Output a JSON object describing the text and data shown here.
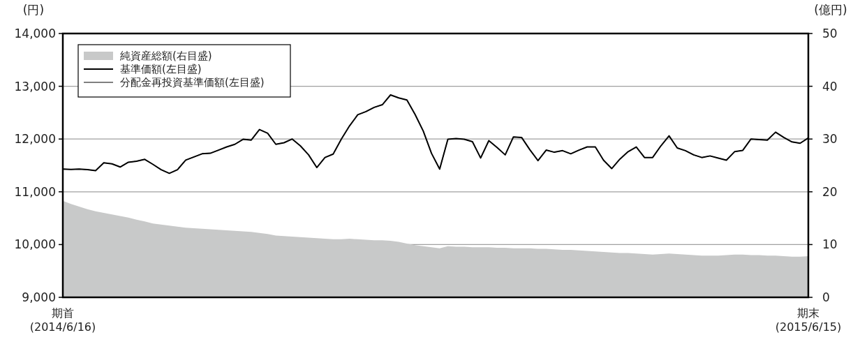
{
  "chart_data": {
    "type": "line",
    "ylabel": "(円)",
    "y2label": "(億円)",
    "categories": [
      "期首\n(2014/6/16)",
      null,
      null,
      null,
      null,
      null,
      null,
      null,
      null,
      null,
      null,
      null,
      null,
      null,
      null,
      null,
      null,
      null,
      null,
      null,
      null,
      null,
      null,
      null,
      null,
      null,
      null,
      null,
      null,
      null,
      null,
      null,
      null,
      null,
      null,
      null,
      null,
      null,
      null,
      null,
      null,
      null,
      null,
      null,
      null,
      null,
      null,
      null,
      null,
      null,
      null,
      null,
      null,
      null,
      null,
      null,
      null,
      null,
      null,
      null,
      null,
      null,
      null,
      null,
      null,
      null,
      null,
      null,
      null,
      null,
      null,
      null,
      null,
      null,
      null,
      null,
      null,
      null,
      null,
      null,
      null,
      null,
      null,
      null,
      null,
      null,
      null,
      null,
      null,
      null,
      null,
      "期末\n(2015/6/15)"
    ],
    "ylim": [
      9000,
      14000
    ],
    "yticks": [
      {
        "value": 9000,
        "label": "9,000"
      },
      {
        "value": 10000,
        "label": "10,000"
      },
      {
        "value": 11000,
        "label": "11,000"
      },
      {
        "value": 12000,
        "label": "12,000"
      },
      {
        "value": 13000,
        "label": "13,000"
      },
      {
        "value": 14000,
        "label": "14,000"
      }
    ],
    "y2lim": [
      0,
      50
    ],
    "y2ticks": [
      0,
      10,
      20,
      30,
      40,
      50
    ],
    "grid": "y",
    "legend": "top left",
    "series": [
      {
        "name": "純資産総額(右目盛)",
        "type": "area",
        "axis": "y2",
        "color": "#c8c9c9",
        "values": [
          18.3,
          17.7,
          17.2,
          16.7,
          16.3,
          16.0,
          15.7,
          15.4,
          15.1,
          14.7,
          14.4,
          14.0,
          13.8,
          13.6,
          13.4,
          13.2,
          13.1,
          13.0,
          12.9,
          12.8,
          12.7,
          12.6,
          12.5,
          12.4,
          12.2,
          12.0,
          11.7,
          11.6,
          11.5,
          11.4,
          11.3,
          11.2,
          11.1,
          11.0,
          11.0,
          11.1,
          11.0,
          10.9,
          10.8,
          10.8,
          10.7,
          10.5,
          10.2,
          9.9,
          9.7,
          9.5,
          9.3,
          9.7,
          9.6,
          9.6,
          9.5,
          9.5,
          9.5,
          9.4,
          9.4,
          9.3,
          9.3,
          9.3,
          9.2,
          9.2,
          9.1,
          9.0,
          9.0,
          8.9,
          8.8,
          8.7,
          8.6,
          8.5,
          8.4,
          8.4,
          8.3,
          8.2,
          8.1,
          8.2,
          8.3,
          8.2,
          8.1,
          8.0,
          7.9,
          7.9,
          7.9,
          8.0,
          8.1,
          8.1,
          8.0,
          8.0,
          7.9,
          7.9,
          7.8,
          7.7,
          7.7,
          7.8
        ]
      },
      {
        "name": "基準価額(左目盛)",
        "color": "#000000",
        "values": [
          11430,
          11425,
          11430,
          11420,
          11400,
          11550,
          11530,
          11470,
          11560,
          11580,
          11615,
          11520,
          11420,
          11350,
          11420,
          11600,
          11660,
          11720,
          11730,
          11790,
          11850,
          11900,
          11995,
          11980,
          12180,
          12110,
          11900,
          11930,
          12000,
          11870,
          11700,
          11460,
          11650,
          11715,
          12000,
          12250,
          12460,
          12520,
          12600,
          12650,
          12836,
          12780,
          12740,
          12465,
          12150,
          11730,
          11430,
          11995,
          12008,
          11995,
          11950,
          11640,
          11970,
          11840,
          11700,
          12040,
          12030,
          11800,
          11590,
          11790,
          11750,
          11780,
          11720,
          11790,
          11850,
          11850,
          11600,
          11440,
          11620,
          11760,
          11850,
          11650,
          11650,
          11870,
          12060,
          11830,
          11780,
          11700,
          11650,
          11680,
          11640,
          11600,
          11760,
          11785,
          12000,
          11990,
          11980,
          12130,
          12030,
          11945,
          11920,
          12020
        ]
      },
      {
        "name": "分配金再投資基準価額(左目盛)",
        "color": "#000000",
        "values": [
          11430,
          11425,
          11430,
          11420,
          11400,
          11550,
          11530,
          11470,
          11560,
          11580,
          11615,
          11520,
          11420,
          11350,
          11420,
          11600,
          11660,
          11720,
          11730,
          11790,
          11850,
          11900,
          11995,
          11980,
          12180,
          12110,
          11900,
          11930,
          12000,
          11870,
          11700,
          11460,
          11650,
          11715,
          12000,
          12250,
          12460,
          12520,
          12600,
          12650,
          12836,
          12780,
          12740,
          12465,
          12150,
          11730,
          11430,
          11995,
          12008,
          11995,
          11950,
          11640,
          11970,
          11840,
          11700,
          12040,
          12030,
          11800,
          11590,
          11790,
          11750,
          11780,
          11720,
          11790,
          11850,
          11850,
          11600,
          11440,
          11620,
          11760,
          11850,
          11650,
          11650,
          11870,
          12060,
          11830,
          11780,
          11700,
          11650,
          11680,
          11640,
          11600,
          11760,
          11785,
          12000,
          11990,
          11980,
          12130,
          12030,
          11945,
          11920,
          12020
        ]
      }
    ]
  }
}
